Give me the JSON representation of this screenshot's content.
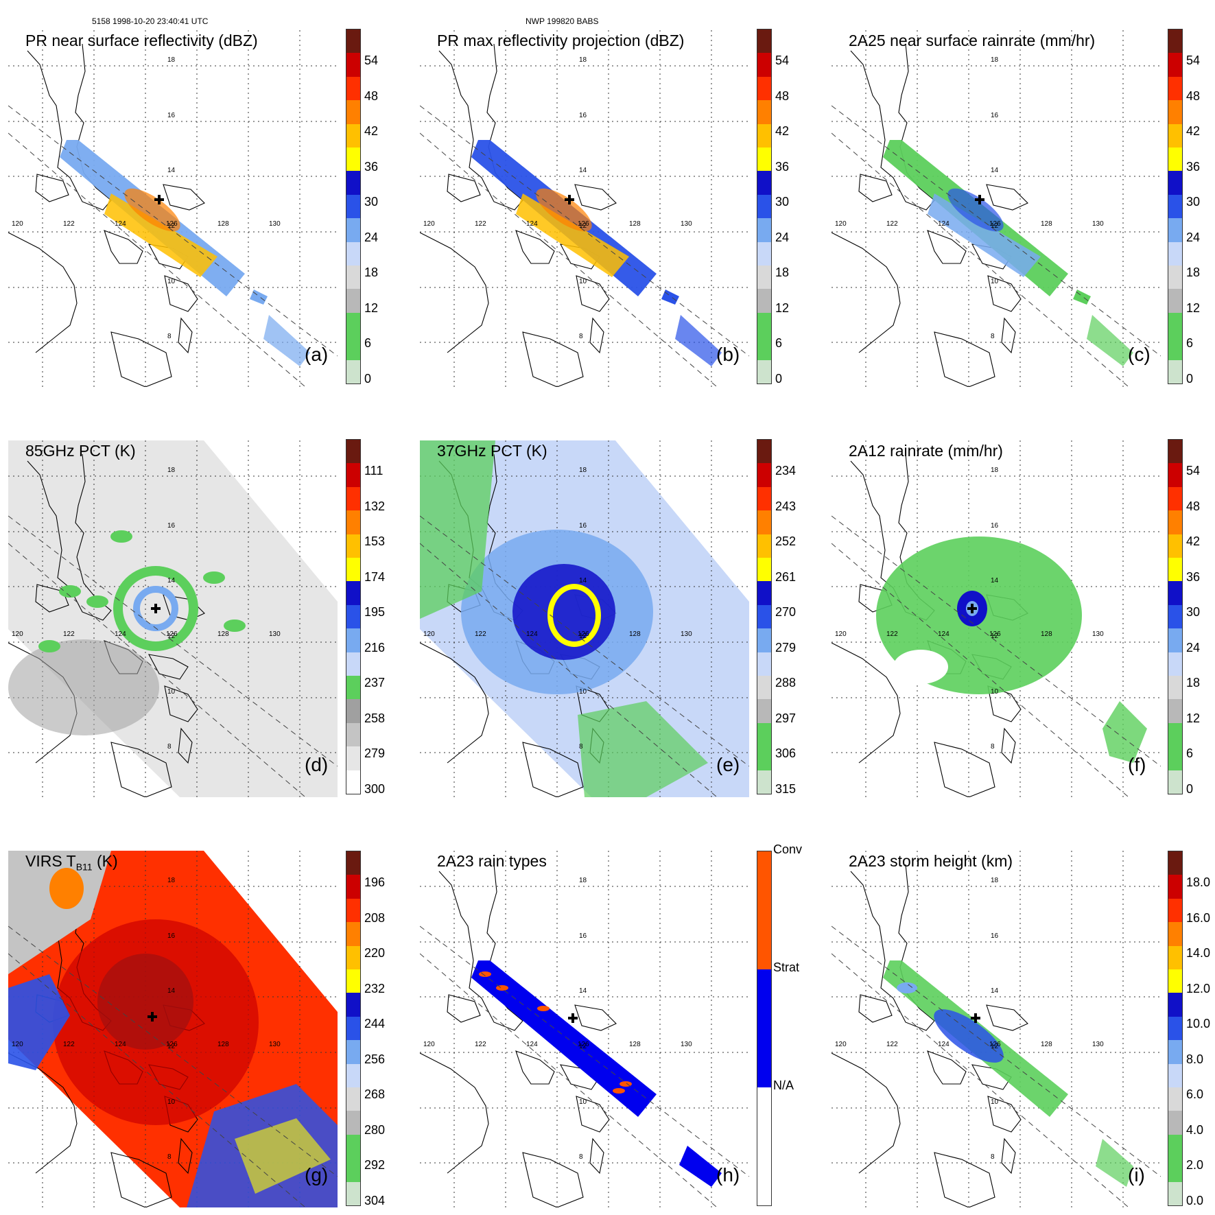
{
  "header": {
    "left": "5158 1998-10-20 23:40:41 UTC",
    "center": "NWP 199820 BABS"
  },
  "map": {
    "lon_ticks": [
      "120",
      "122",
      "124",
      "126",
      "128",
      "130"
    ],
    "lat_ticks": [
      "18",
      "16",
      "14",
      "12",
      "10",
      "8"
    ]
  },
  "colors": {
    "precip_scale": [
      "#cde3cd",
      "#5ccf5c",
      "#5ccf5c",
      "#b8b8b8",
      "#d9d9d9",
      "#c8d8f8",
      "#78aaf0",
      "#2a52e8",
      "#1010c8",
      "#ffff00",
      "#ffc000",
      "#ff8000",
      "#ff3000",
      "#cc0000",
      "#6a1a10"
    ],
    "gray_scale": [
      "#ffffff",
      "#e6e6e6",
      "#c4c4c4",
      "#a0a0a0",
      "#5ccf5c",
      "#c8d8f8",
      "#78aaf0",
      "#2a52e8",
      "#1010c8",
      "#ffff00",
      "#ffc000",
      "#ff8000",
      "#ff3000",
      "#cc0000",
      "#6a1a10"
    ],
    "rain_types": [
      "#ffffff",
      "#0000ee",
      "#ff5500"
    ],
    "eye_marker": "#000000"
  },
  "panels": [
    {
      "title": "PR near surface reflectivity (dBZ)",
      "label": "(a)",
      "colorbar": {
        "ticks": [
          "54",
          "48",
          "42",
          "36",
          "30",
          "24",
          "18",
          "12",
          "6",
          "0"
        ]
      }
    },
    {
      "title": "PR max reflectivity projection (dBZ)",
      "label": "(b)",
      "colorbar": {
        "ticks": [
          "54",
          "48",
          "42",
          "36",
          "30",
          "24",
          "18",
          "12",
          "6",
          "0"
        ]
      }
    },
    {
      "title": "2A25 near surface rainrate (mm/hr)",
      "label": "(c)",
      "colorbar": {
        "ticks": [
          "54",
          "48",
          "42",
          "36",
          "30",
          "24",
          "18",
          "12",
          "6",
          "0"
        ]
      }
    },
    {
      "title": "85GHz PCT (K)",
      "label": "(d)",
      "colorbar": {
        "ticks": [
          "111",
          "132",
          "153",
          "174",
          "195",
          "216",
          "237",
          "258",
          "279",
          "300"
        ]
      }
    },
    {
      "title": "37GHz PCT (K)",
      "label": "(e)",
      "colorbar": {
        "ticks": [
          "234",
          "243",
          "252",
          "261",
          "270",
          "279",
          "288",
          "297",
          "306",
          "315"
        ]
      }
    },
    {
      "title": "2A12 rainrate (mm/hr)",
      "label": "(f)",
      "colorbar": {
        "ticks": [
          "54",
          "48",
          "42",
          "36",
          "30",
          "24",
          "18",
          "12",
          "6",
          "0"
        ]
      }
    },
    {
      "title": "VIRS T",
      "title_sub": "B11",
      "title_suffix": " (K)",
      "label": "(g)",
      "colorbar": {
        "ticks": [
          "196",
          "208",
          "220",
          "232",
          "244",
          "256",
          "268",
          "280",
          "292",
          "304"
        ]
      }
    },
    {
      "title": "2A23 rain types",
      "label": "(h)",
      "colorbar": {
        "ticks": [
          "Conv",
          "Strat",
          "N/A"
        ]
      }
    },
    {
      "title": "2A23 storm height (km)",
      "label": "(i)",
      "colorbar": {
        "ticks": [
          "18.0",
          "16.0",
          "14.0",
          "12.0",
          "10.0",
          "8.0",
          "6.0",
          "4.0",
          "2.0",
          "0.0"
        ]
      }
    }
  ]
}
